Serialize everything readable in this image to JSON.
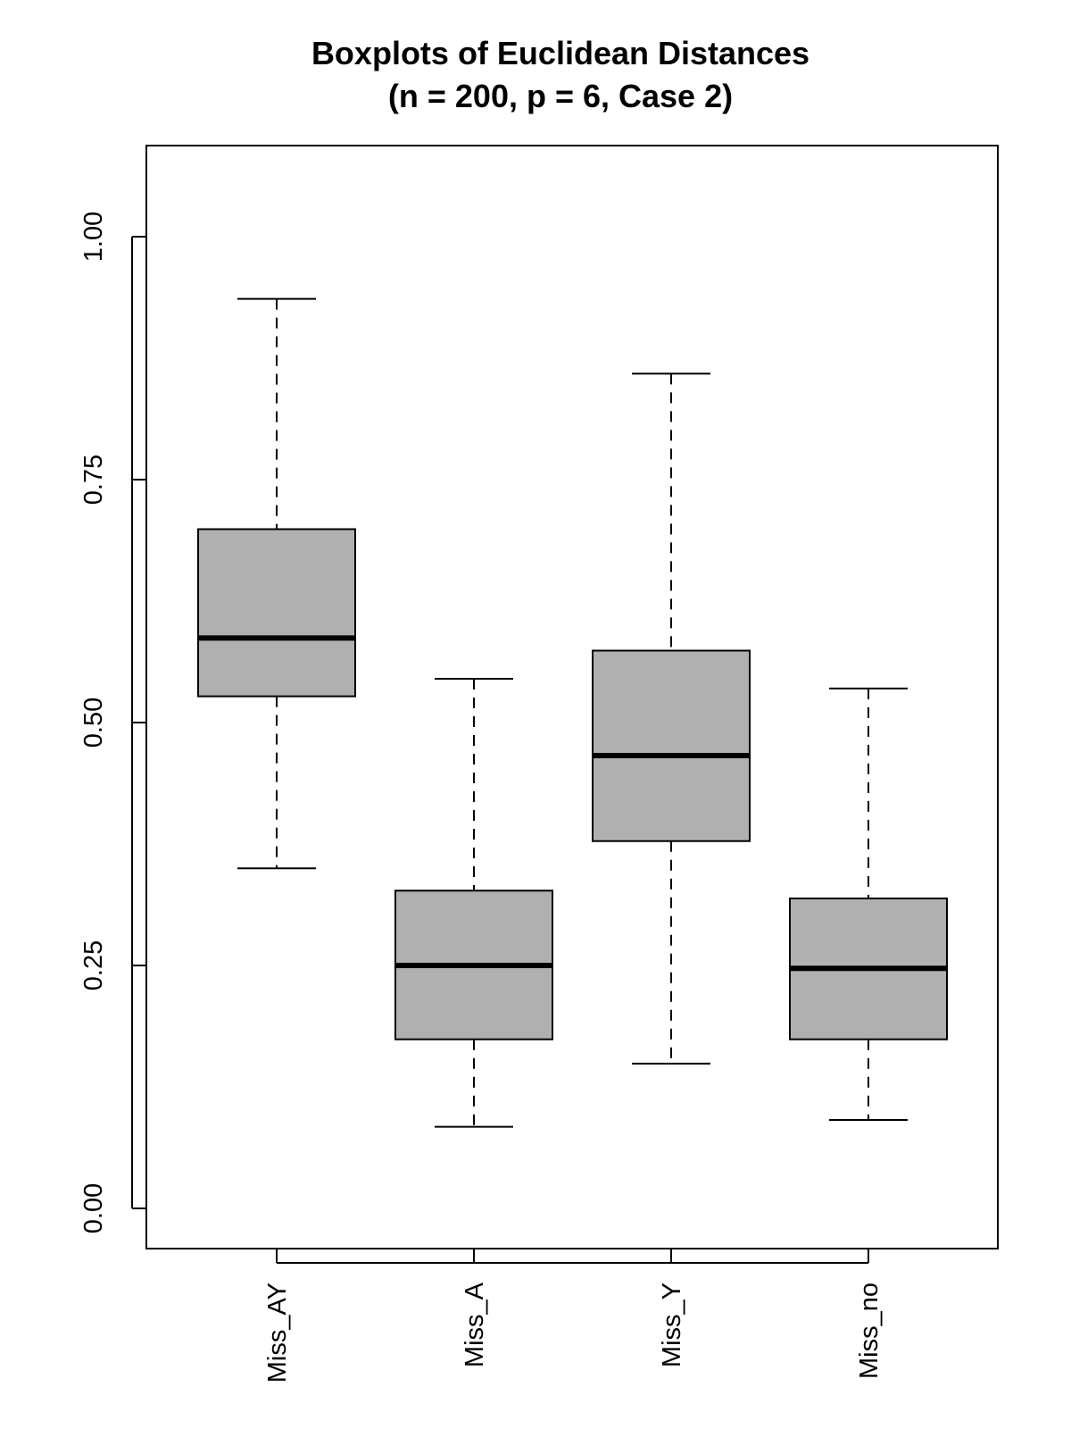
{
  "chart_data": {
    "type": "boxplot",
    "title": "Boxplots of Euclidean Distances",
    "subtitle": "(n = 200, p = 6, Case 2)",
    "xlabel": "",
    "ylabel": "",
    "ylim": [
      -0.04,
      1.095
    ],
    "yticks": [
      0.0,
      0.25,
      0.5,
      0.75,
      1.0
    ],
    "ytick_labels": [
      "0.00",
      "0.25",
      "0.50",
      "0.75",
      "1.00"
    ],
    "categories": [
      "Miss_AY",
      "Miss_A",
      "Miss_Y",
      "Miss_no"
    ],
    "grid": false,
    "legend": "none",
    "box_fill": "#b0b0b0",
    "median_color": "#000000",
    "boxes": [
      {
        "category": "Miss_AY",
        "whisker_low": 0.35,
        "q1": 0.527,
        "median": 0.587,
        "q3": 0.699,
        "whisker_high": 0.936
      },
      {
        "category": "Miss_A",
        "whisker_low": 0.084,
        "q1": 0.174,
        "median": 0.25,
        "q3": 0.327,
        "whisker_high": 0.545
      },
      {
        "category": "Miss_Y",
        "whisker_low": 0.149,
        "q1": 0.378,
        "median": 0.466,
        "q3": 0.574,
        "whisker_high": 0.859
      },
      {
        "category": "Miss_no",
        "whisker_low": 0.091,
        "q1": 0.174,
        "median": 0.247,
        "q3": 0.319,
        "whisker_high": 0.535
      }
    ]
  }
}
